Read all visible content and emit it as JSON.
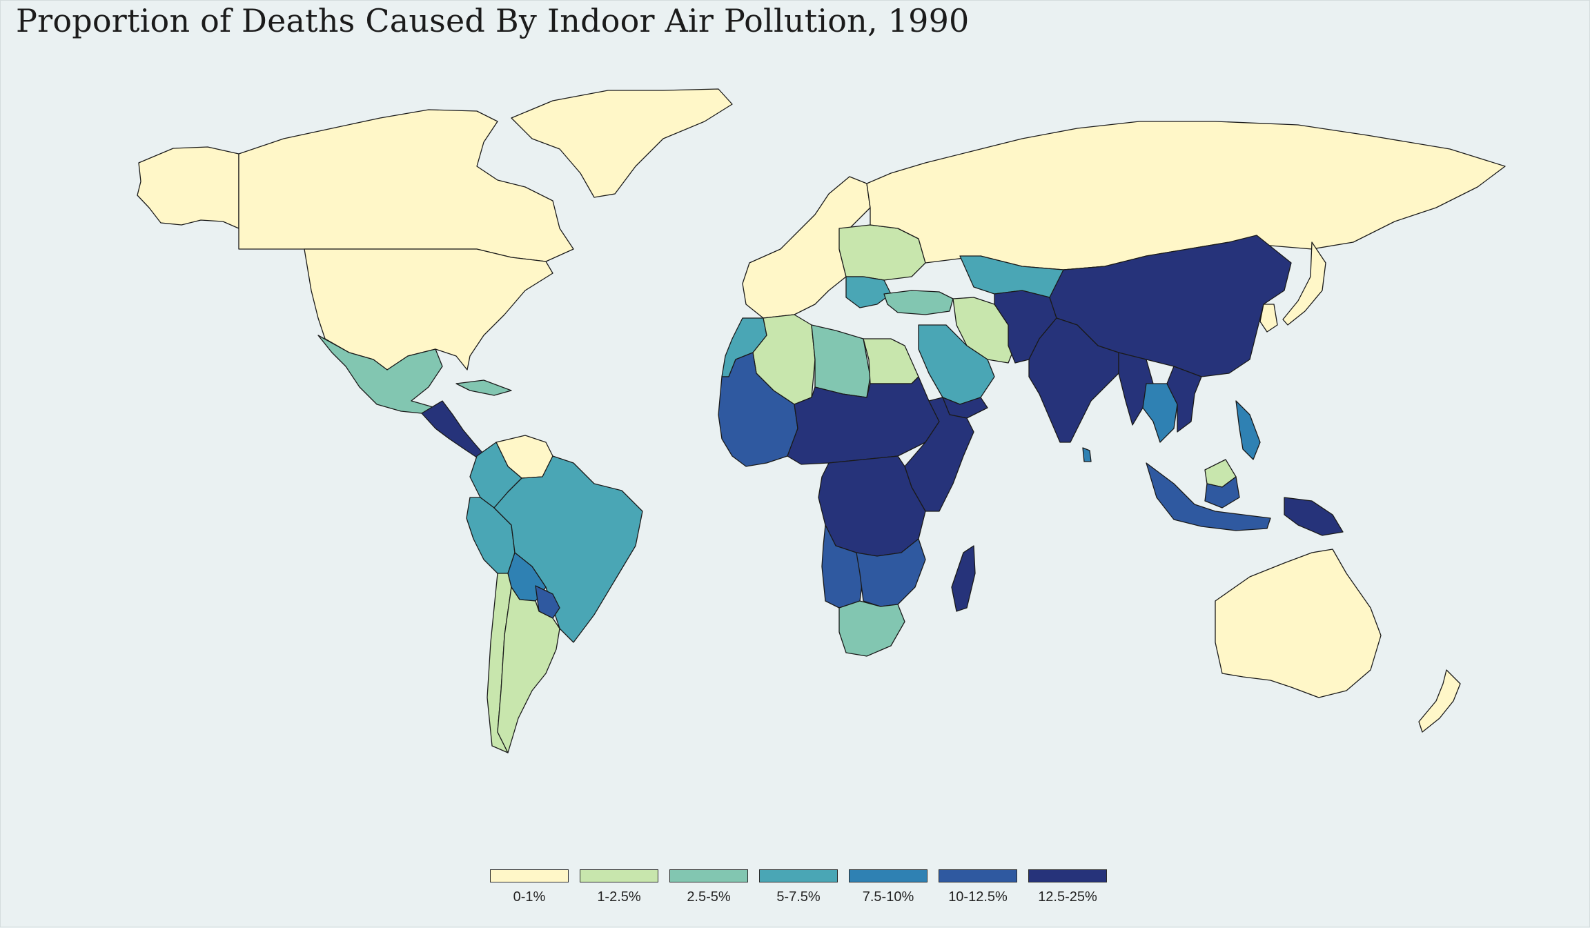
{
  "title": "Proportion of Deaths Caused By Indoor Air Pollution, 1990",
  "colors": {
    "background": "#eaf1f2",
    "no_data": "#9aa0a0",
    "bins": [
      "#fff7c8",
      "#c8e6ad",
      "#82c6b1",
      "#4aa6b5",
      "#2f81b3",
      "#2f59a0",
      "#26337a"
    ]
  },
  "legend": {
    "items": [
      {
        "label": "0-1%",
        "color": "#fff7c8"
      },
      {
        "label": "1-2.5%",
        "color": "#c8e6ad"
      },
      {
        "label": "2.5-5%",
        "color": "#82c6b1"
      },
      {
        "label": "5-7.5%",
        "color": "#4aa6b5"
      },
      {
        "label": "7.5-10%",
        "color": "#2f81b3"
      },
      {
        "label": "10-12.5%",
        "color": "#2f59a0"
      },
      {
        "label": "12.5-25%",
        "color": "#26337a"
      }
    ]
  },
  "regions": [
    {
      "name": "Canada",
      "bin": 0
    },
    {
      "name": "Alaska",
      "bin": 0
    },
    {
      "name": "United States",
      "bin": 0
    },
    {
      "name": "Greenland",
      "bin": 0
    },
    {
      "name": "Mexico",
      "bin": 2
    },
    {
      "name": "Central America",
      "bin": 6
    },
    {
      "name": "Cuba",
      "bin": 2
    },
    {
      "name": "Venezuela",
      "bin": 0
    },
    {
      "name": "Colombia",
      "bin": 3
    },
    {
      "name": "Brazil",
      "bin": 3
    },
    {
      "name": "Peru",
      "bin": 3
    },
    {
      "name": "Bolivia",
      "bin": 4
    },
    {
      "name": "Paraguay",
      "bin": 5
    },
    {
      "name": "Argentina",
      "bin": 1
    },
    {
      "name": "Chile",
      "bin": 1
    },
    {
      "name": "Western Europe",
      "bin": 0
    },
    {
      "name": "Eastern Europe",
      "bin": 1
    },
    {
      "name": "Balkans",
      "bin": 3
    },
    {
      "name": "Russia",
      "bin": 0
    },
    {
      "name": "Kazakhstan",
      "bin": 3
    },
    {
      "name": "Turkey",
      "bin": 2
    },
    {
      "name": "Iran",
      "bin": 1
    },
    {
      "name": "Saudi Arabia",
      "bin": 3
    },
    {
      "name": "Yemen",
      "bin": 6
    },
    {
      "name": "Egypt",
      "bin": 1
    },
    {
      "name": "Libya",
      "bin": 2
    },
    {
      "name": "Algeria",
      "bin": 1
    },
    {
      "name": "Morocco",
      "bin": 3
    },
    {
      "name": "West Africa",
      "bin": 5
    },
    {
      "name": "Sahel",
      "bin": 6
    },
    {
      "name": "Central Africa",
      "bin": 6
    },
    {
      "name": "East Africa",
      "bin": 6
    },
    {
      "name": "Angola",
      "bin": 5
    },
    {
      "name": "Southern Africa",
      "bin": 5
    },
    {
      "name": "South Africa",
      "bin": 2
    },
    {
      "name": "Madagascar",
      "bin": 6
    },
    {
      "name": "China",
      "bin": 6
    },
    {
      "name": "India",
      "bin": 6
    },
    {
      "name": "Afghanistan & Pakistan",
      "bin": 6
    },
    {
      "name": "Myanmar",
      "bin": 6
    },
    {
      "name": "Thailand",
      "bin": 4
    },
    {
      "name": "Vietnam",
      "bin": 6
    },
    {
      "name": "Philippines",
      "bin": 4
    },
    {
      "name": "Indonesia",
      "bin": 5
    },
    {
      "name": "Borneo (Malaysia)",
      "bin": 1
    },
    {
      "name": "Papua New Guinea",
      "bin": 6
    },
    {
      "name": "Japan",
      "bin": 0
    },
    {
      "name": "Korea",
      "bin": 0
    },
    {
      "name": "Australia",
      "bin": 0
    },
    {
      "name": "New Zealand",
      "bin": 0
    },
    {
      "name": "Sri Lanka",
      "bin": 4
    }
  ]
}
